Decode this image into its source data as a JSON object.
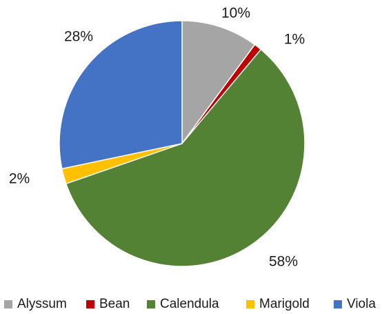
{
  "chart_data": {
    "type": "pie",
    "categories": [
      "Alyssum",
      "Bean",
      "Calendula",
      "Marigold",
      "Viola"
    ],
    "values": [
      10,
      1,
      58,
      2,
      28
    ],
    "data_labels": [
      "10%",
      "1%",
      "58%",
      "2%",
      "28%"
    ],
    "colors": [
      "#a5a5a5",
      "#c00000",
      "#548235",
      "#ffc000",
      "#4472c4"
    ],
    "legend_position": "bottom",
    "title": ""
  }
}
